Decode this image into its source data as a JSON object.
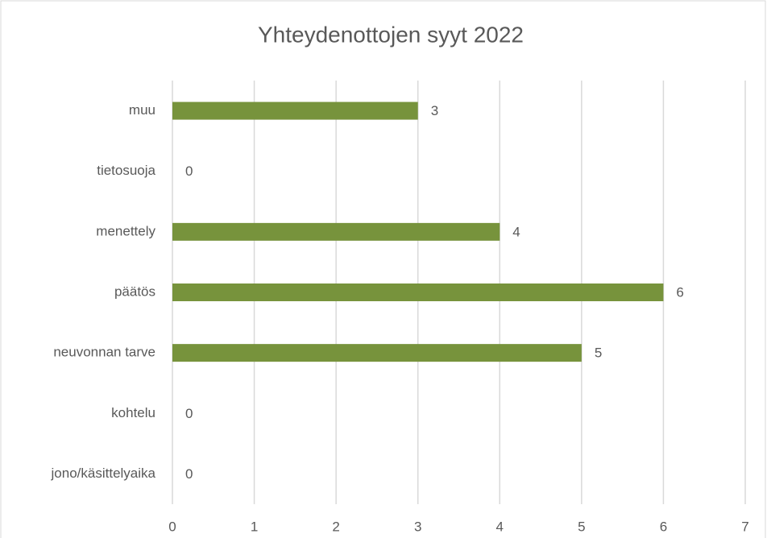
{
  "chart_data": {
    "type": "hbar",
    "title": "Yhteydenottojen syyt 2022",
    "categories": [
      "muu",
      "tietosuoja",
      "menettely",
      "päätös",
      "neuvonnan tarve",
      "kohtelu",
      "jono/käsittelyaika"
    ],
    "values": [
      3,
      0,
      4,
      6,
      5,
      0,
      0
    ],
    "color": "#77933c",
    "xlim": [
      0,
      7
    ],
    "xticks": [
      0,
      1,
      2,
      3,
      4,
      5,
      6,
      7
    ],
    "grid": true
  }
}
